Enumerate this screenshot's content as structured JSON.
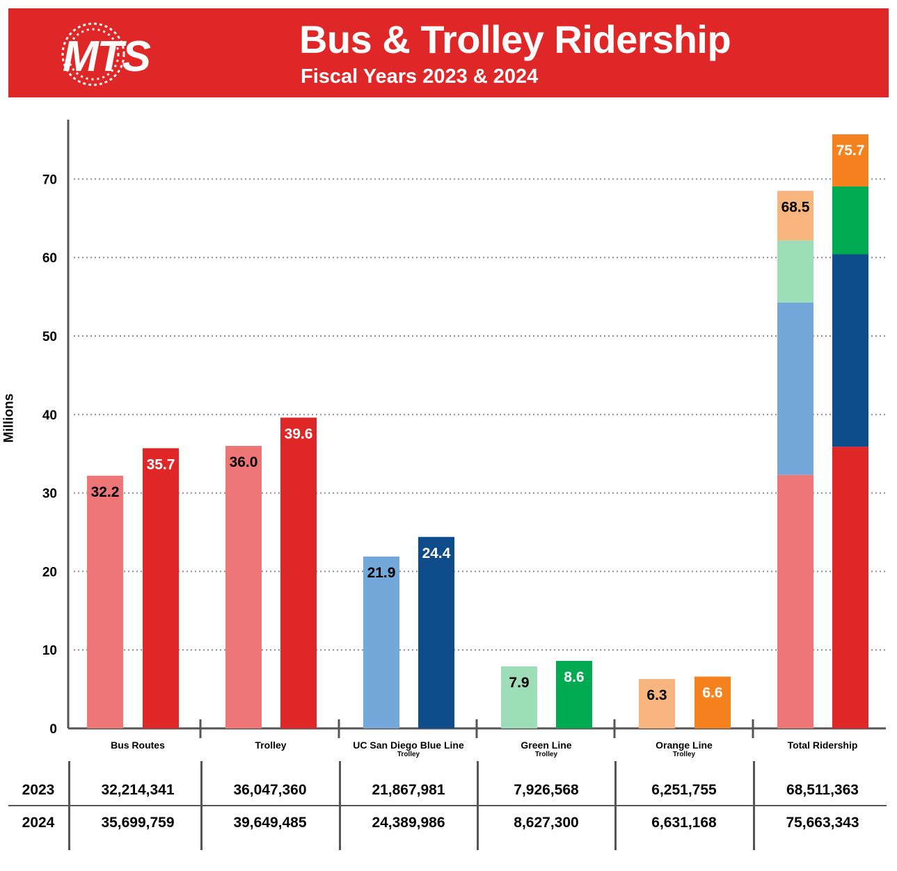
{
  "header": {
    "logo_text": "MTS",
    "title": "Bus & Trolley Ridership",
    "subtitle": "Fiscal Years 2023 & 2024"
  },
  "colors": {
    "header_red": "#e02727",
    "bus_2023": "#ee7676",
    "bus_2024": "#e02727",
    "blue_2023": "#74a8db",
    "blue_2024": "#0f4c8c",
    "green_2023": "#9ddeb9",
    "green_2024": "#00aa50",
    "orange_2023": "#f8b57e",
    "orange_2024": "#f5821f"
  },
  "chart_data": {
    "type": "bar",
    "ylabel": "Millions",
    "xlabel": "",
    "ylim": [
      0,
      75.7
    ],
    "yticks": [
      0,
      10,
      20,
      30,
      40,
      50,
      60,
      70
    ],
    "grid": "horizontal dotted",
    "categories": [
      {
        "label": "Bus Routes",
        "sublabel": ""
      },
      {
        "label": "Trolley",
        "sublabel": ""
      },
      {
        "label": "UC San Diego Blue Line",
        "sublabel": "Trolley"
      },
      {
        "label": "Green Line",
        "sublabel": "Trolley"
      },
      {
        "label": "Orange Line",
        "sublabel": "Trolley"
      },
      {
        "label": "Total Ridership",
        "sublabel": ""
      }
    ],
    "series": [
      {
        "name": "2023",
        "values": [
          32.2,
          36.0,
          21.9,
          7.9,
          6.3,
          68.5
        ],
        "colors": [
          "#ee7676",
          "#ee7676",
          "#74a8db",
          "#9ddeb9",
          "#f8b57e",
          null
        ],
        "label_colors": [
          "#000",
          "#000",
          "#000",
          "#000",
          "#000",
          "#000"
        ]
      },
      {
        "name": "2024",
        "values": [
          35.7,
          39.6,
          24.4,
          8.6,
          6.6,
          75.7
        ],
        "colors": [
          "#e02727",
          "#e02727",
          "#0f4c8c",
          "#00aa50",
          "#f5821f",
          null
        ],
        "label_colors": [
          "#fff",
          "#fff",
          "#fff",
          "#fff",
          "#fff",
          "#fff"
        ]
      }
    ],
    "total_stack": {
      "2023": [
        {
          "component": "Bus Routes",
          "value": 32.2,
          "color": "#ee7676"
        },
        {
          "component": "UC San Diego Blue Line",
          "value": 21.9,
          "color": "#74a8db"
        },
        {
          "component": "Green Line",
          "value": 7.9,
          "color": "#9ddeb9"
        },
        {
          "component": "Orange Line",
          "value": 6.3,
          "color": "#f8b57e"
        }
      ],
      "2024": [
        {
          "component": "Bus Routes",
          "value": 35.7,
          "color": "#e02727"
        },
        {
          "component": "UC San Diego Blue Line",
          "value": 24.4,
          "color": "#0f4c8c"
        },
        {
          "component": "Green Line",
          "value": 8.6,
          "color": "#00aa50"
        },
        {
          "component": "Orange Line",
          "value": 6.6,
          "color": "#f5821f"
        }
      ]
    }
  },
  "table": {
    "rows": [
      {
        "year": "2023",
        "values": [
          "32,214,341",
          "36,047,360",
          "21,867,981",
          "7,926,568",
          "6,251,755",
          "68,511,363"
        ]
      },
      {
        "year": "2024",
        "values": [
          "35,699,759",
          "39,649,485",
          "24,389,986",
          "8,627,300",
          "6,631,168",
          "75,663,343"
        ]
      }
    ]
  }
}
